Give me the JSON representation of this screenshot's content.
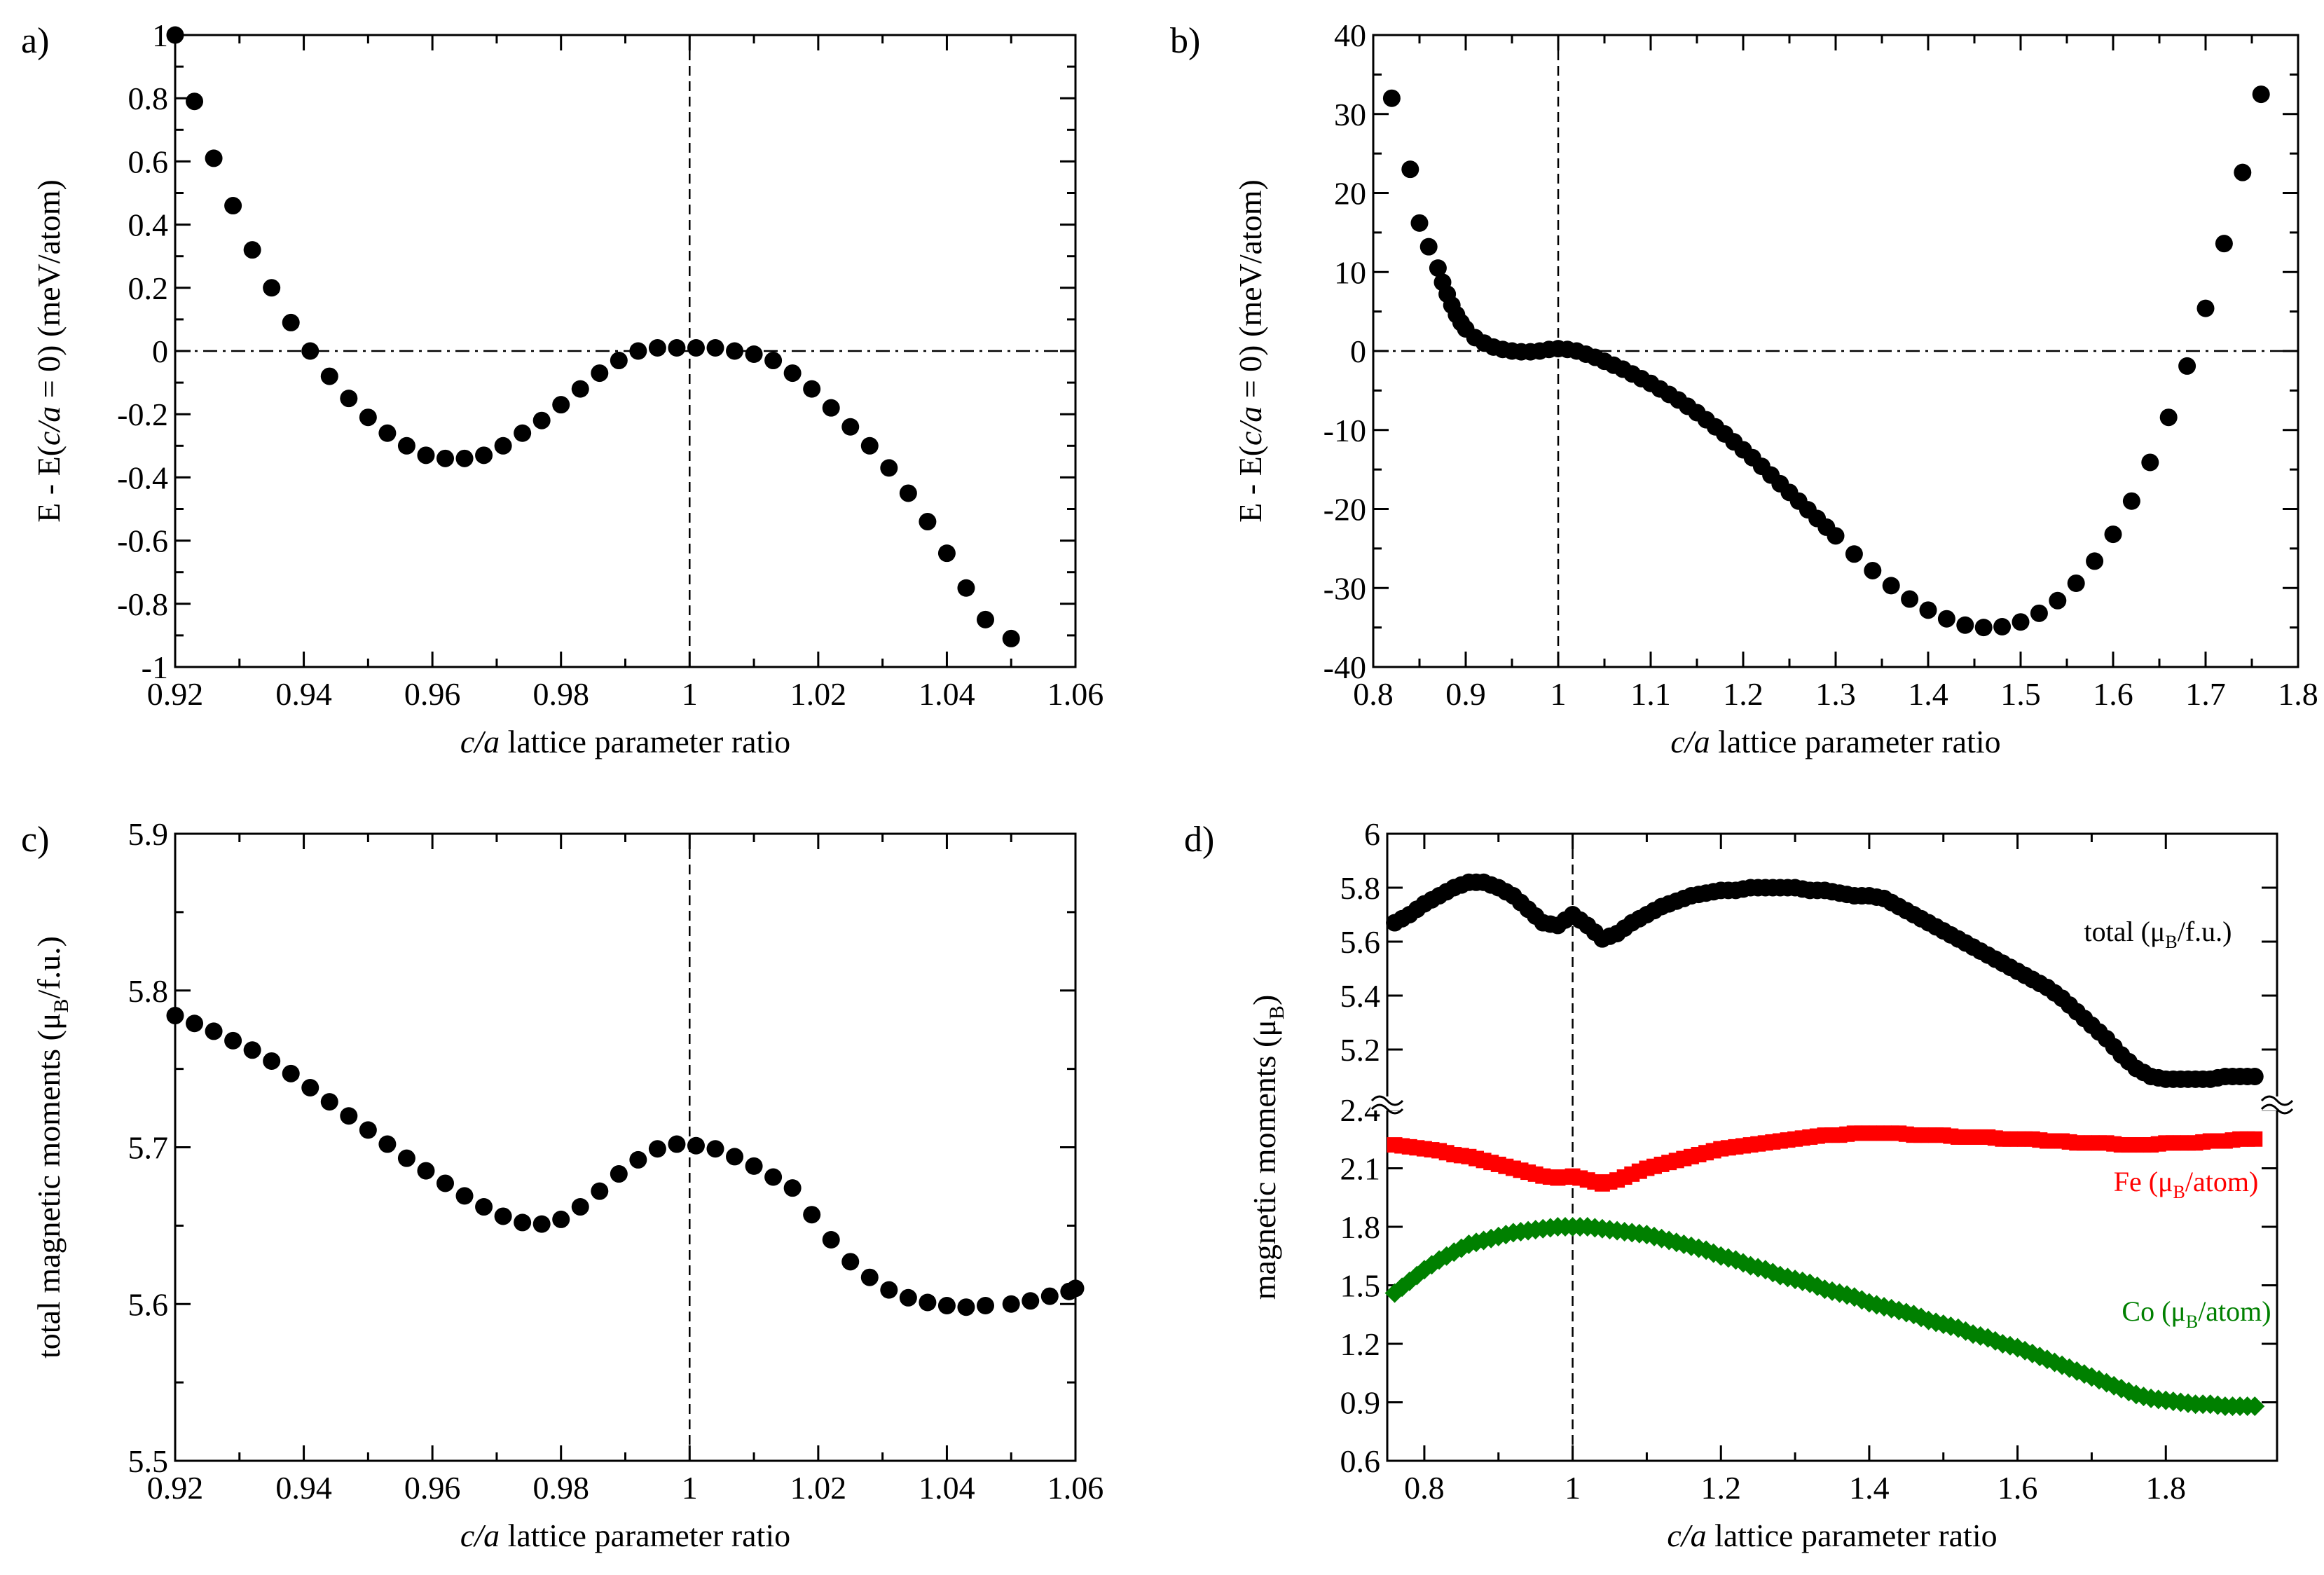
{
  "chart_data": [
    {
      "panel_label": "a)",
      "type": "scatter",
      "ylabel_pre": "E - E(",
      "ylabel_italic": "c/a",
      "ylabel_post": " = 0) (meV/atom)",
      "xlabel_italic": "c/a",
      "xlabel_rest": " lattice parameter ratio",
      "xlim": [
        0.92,
        1.06
      ],
      "ylim": [
        -1,
        1
      ],
      "xticks": [
        "0.92",
        "0.94",
        "0.96",
        "0.98",
        "1",
        "1.02",
        "1.04",
        "1.06"
      ],
      "yticks": [
        "-1",
        "-0.8",
        "-0.6",
        "-0.4",
        "-0.2",
        "0",
        "0.2",
        "0.4",
        "0.6",
        "0.8",
        "1"
      ],
      "reference_lines": {
        "vertical_x": 1,
        "horizontal_y": 0
      },
      "series": [
        {
          "color": "#000000",
          "marker": "circle",
          "x": [
            0.92,
            0.923,
            0.926,
            0.929,
            0.932,
            0.935,
            0.938,
            0.941,
            0.944,
            0.947,
            0.95,
            0.953,
            0.956,
            0.959,
            0.962,
            0.965,
            0.968,
            0.971,
            0.974,
            0.977,
            0.98,
            0.983,
            0.986,
            0.989,
            0.992,
            0.995,
            0.998,
            1.001,
            1.004,
            1.007,
            1.01,
            1.013,
            1.016,
            1.019,
            1.022,
            1.025,
            1.028,
            1.031,
            1.034,
            1.037,
            1.04,
            1.043,
            1.046,
            1.05
          ],
          "y": [
            1.0,
            0.79,
            0.61,
            0.46,
            0.32,
            0.2,
            0.09,
            0.0,
            -0.08,
            -0.15,
            -0.21,
            -0.26,
            -0.3,
            -0.33,
            -0.34,
            -0.34,
            -0.33,
            -0.3,
            -0.26,
            -0.22,
            -0.17,
            -0.12,
            -0.07,
            -0.03,
            0.0,
            0.01,
            0.01,
            0.01,
            0.01,
            0.0,
            -0.01,
            -0.03,
            -0.07,
            -0.12,
            -0.18,
            -0.24,
            -0.3,
            -0.37,
            -0.45,
            -0.54,
            -0.64,
            -0.75,
            -0.85,
            -0.91
          ]
        }
      ]
    },
    {
      "panel_label": "b)",
      "type": "scatter",
      "ylabel_pre": "E - E(",
      "ylabel_italic": "c/a",
      "ylabel_post": " = 0) (meV/atom)",
      "xlabel_italic": "c/a",
      "xlabel_rest": " lattice parameter ratio",
      "xlim": [
        0.8,
        1.8
      ],
      "ylim": [
        -40,
        40
      ],
      "xticks": [
        "0.8",
        "0.9",
        "1",
        "1.1",
        "1.2",
        "1.3",
        "1.4",
        "1.5",
        "1.6",
        "1.7",
        "1.8"
      ],
      "yticks": [
        "-40",
        "-30",
        "-20",
        "-10",
        "0",
        "10",
        "20",
        "30",
        "40"
      ],
      "reference_lines": {
        "vertical_x": 1,
        "horizontal_y": 0
      },
      "series": [
        {
          "color": "#000000",
          "marker": "circle",
          "x": [
            0.82,
            0.84,
            0.85,
            0.86,
            0.87,
            0.875,
            0.88,
            0.885,
            0.89,
            0.895,
            0.9,
            0.91,
            0.92,
            0.93,
            0.94,
            0.95,
            0.96,
            0.97,
            0.98,
            0.99,
            1.0,
            1.01,
            1.02,
            1.03,
            1.04,
            1.05,
            1.06,
            1.07,
            1.08,
            1.09,
            1.1,
            1.11,
            1.12,
            1.13,
            1.14,
            1.15,
            1.16,
            1.17,
            1.18,
            1.19,
            1.2,
            1.21,
            1.22,
            1.23,
            1.24,
            1.25,
            1.26,
            1.27,
            1.28,
            1.29,
            1.3,
            1.32,
            1.34,
            1.36,
            1.38,
            1.4,
            1.42,
            1.44,
            1.46,
            1.48,
            1.5,
            1.52,
            1.54,
            1.56,
            1.58,
            1.6,
            1.62,
            1.64,
            1.66,
            1.68,
            1.7,
            1.72,
            1.74,
            1.76
          ],
          "y": [
            32,
            23,
            16.2,
            13.2,
            10.5,
            8.7,
            7.2,
            5.8,
            4.6,
            3.6,
            2.8,
            1.7,
            1.0,
            0.5,
            0.2,
            0.0,
            -0.1,
            -0.1,
            0.0,
            0.2,
            0.3,
            0.2,
            0.0,
            -0.4,
            -0.8,
            -1.3,
            -1.8,
            -2.3,
            -2.9,
            -3.5,
            -4.1,
            -4.8,
            -5.5,
            -6.2,
            -7.0,
            -7.8,
            -8.7,
            -9.6,
            -10.5,
            -11.5,
            -12.5,
            -13.5,
            -14.6,
            -15.7,
            -16.8,
            -17.9,
            -19.0,
            -20.1,
            -21.2,
            -22.3,
            -23.4,
            -25.7,
            -27.8,
            -29.7,
            -31.4,
            -32.8,
            -33.9,
            -34.7,
            -35.0,
            -34.9,
            -34.3,
            -33.2,
            -31.6,
            -29.4,
            -26.6,
            -23.2,
            -19.0,
            -14.1,
            -8.4,
            -1.9,
            5.4,
            13.6,
            22.6,
            32.5
          ]
        }
      ]
    },
    {
      "panel_label": "c)",
      "type": "scatter",
      "ylabel_pre": "total magnetic moments (μ",
      "ylabel_sub": "B",
      "ylabel_post": "/f.u.)",
      "xlabel_italic": "c/a",
      "xlabel_rest": " lattice parameter ratio",
      "xlim": [
        0.92,
        1.06
      ],
      "ylim": [
        5.5,
        5.9
      ],
      "xticks": [
        "0.92",
        "0.94",
        "0.96",
        "0.98",
        "1",
        "1.02",
        "1.04",
        "1.06"
      ],
      "yticks": [
        "5.5",
        "5.6",
        "5.7",
        "5.8",
        "5.9"
      ],
      "reference_lines": {
        "vertical_x": 1
      },
      "series": [
        {
          "color": "#000000",
          "marker": "circle",
          "x": [
            0.92,
            0.923,
            0.926,
            0.929,
            0.932,
            0.935,
            0.938,
            0.941,
            0.944,
            0.947,
            0.95,
            0.953,
            0.956,
            0.959,
            0.962,
            0.965,
            0.968,
            0.971,
            0.974,
            0.977,
            0.98,
            0.983,
            0.986,
            0.989,
            0.992,
            0.995,
            0.998,
            1.001,
            1.004,
            1.007,
            1.01,
            1.013,
            1.016,
            1.019,
            1.022,
            1.025,
            1.028,
            1.031,
            1.034,
            1.037,
            1.04,
            1.043,
            1.046,
            1.05,
            1.053,
            1.056,
            1.059,
            1.06
          ],
          "y": [
            5.784,
            5.779,
            5.774,
            5.768,
            5.762,
            5.755,
            5.747,
            5.738,
            5.729,
            5.72,
            5.711,
            5.702,
            5.693,
            5.685,
            5.677,
            5.669,
            5.662,
            5.656,
            5.652,
            5.651,
            5.654,
            5.662,
            5.672,
            5.683,
            5.692,
            5.699,
            5.702,
            5.701,
            5.699,
            5.694,
            5.688,
            5.681,
            5.674,
            5.657,
            5.641,
            5.627,
            5.617,
            5.609,
            5.604,
            5.601,
            5.599,
            5.598,
            5.599,
            5.6,
            5.602,
            5.605,
            5.608,
            5.61
          ]
        }
      ]
    },
    {
      "panel_label": "d)",
      "type": "scatter",
      "ylabel_pre": "magnetic moments (μ",
      "ylabel_sub": "B",
      "ylabel_post": ")",
      "xlabel_italic": "c/a",
      "xlabel_rest": " lattice parameter ratio",
      "xlim": [
        0.75,
        1.95
      ],
      "ylim_lower": [
        0.6,
        2.4
      ],
      "ylim_upper": [
        5.0,
        6.0
      ],
      "axis_break": true,
      "xticks": [
        "0.8",
        "1",
        "1.2",
        "1.4",
        "1.6",
        "1.8"
      ],
      "yticks_lower": [
        "0.6",
        "0.9",
        "1.2",
        "1.5",
        "1.8",
        "2.1",
        "2.4"
      ],
      "yticks_upper": [
        "5.2",
        "5.4",
        "5.6",
        "5.8",
        "6"
      ],
      "reference_lines": {
        "vertical_x": 1
      },
      "series": [
        {
          "name": "total (μB/f.u.)",
          "color": "#000000",
          "marker": "circle",
          "axis": "upper",
          "x": [
            0.76,
            0.78,
            0.8,
            0.82,
            0.84,
            0.86,
            0.88,
            0.9,
            0.92,
            0.94,
            0.96,
            0.98,
            1.0,
            1.02,
            1.04,
            1.06,
            1.08,
            1.1,
            1.12,
            1.14,
            1.16,
            1.18,
            1.2,
            1.22,
            1.24,
            1.26,
            1.28,
            1.3,
            1.32,
            1.34,
            1.36,
            1.38,
            1.4,
            1.42,
            1.44,
            1.46,
            1.48,
            1.5,
            1.52,
            1.54,
            1.56,
            1.58,
            1.6,
            1.62,
            1.64,
            1.66,
            1.68,
            1.7,
            1.72,
            1.74,
            1.76,
            1.78,
            1.8,
            1.82,
            1.84,
            1.86,
            1.88,
            1.9,
            1.92
          ],
          "y": [
            5.67,
            5.7,
            5.74,
            5.77,
            5.8,
            5.82,
            5.82,
            5.8,
            5.77,
            5.72,
            5.67,
            5.66,
            5.7,
            5.66,
            5.61,
            5.63,
            5.67,
            5.7,
            5.73,
            5.75,
            5.77,
            5.78,
            5.79,
            5.79,
            5.8,
            5.8,
            5.8,
            5.8,
            5.79,
            5.79,
            5.78,
            5.77,
            5.77,
            5.76,
            5.73,
            5.7,
            5.67,
            5.64,
            5.61,
            5.58,
            5.55,
            5.52,
            5.49,
            5.46,
            5.43,
            5.39,
            5.34,
            5.29,
            5.24,
            5.18,
            5.13,
            5.1,
            5.09,
            5.09,
            5.09,
            5.09,
            5.1,
            5.1,
            5.1
          ]
        },
        {
          "name": "Fe (μB/atom)",
          "color": "#ff0000",
          "marker": "square",
          "axis": "lower",
          "x": [
            0.76,
            0.78,
            0.8,
            0.82,
            0.84,
            0.86,
            0.88,
            0.9,
            0.92,
            0.94,
            0.96,
            0.98,
            1.0,
            1.02,
            1.04,
            1.06,
            1.08,
            1.1,
            1.12,
            1.14,
            1.16,
            1.18,
            1.2,
            1.22,
            1.24,
            1.26,
            1.28,
            1.3,
            1.32,
            1.34,
            1.36,
            1.38,
            1.4,
            1.42,
            1.44,
            1.46,
            1.48,
            1.5,
            1.52,
            1.54,
            1.56,
            1.58,
            1.6,
            1.62,
            1.64,
            1.66,
            1.68,
            1.7,
            1.72,
            1.74,
            1.76,
            1.78,
            1.8,
            1.82,
            1.84,
            1.86,
            1.88,
            1.9,
            1.92
          ],
          "y": [
            2.22,
            2.21,
            2.2,
            2.19,
            2.17,
            2.16,
            2.14,
            2.12,
            2.1,
            2.08,
            2.06,
            2.05,
            2.06,
            2.04,
            2.02,
            2.04,
            2.07,
            2.1,
            2.12,
            2.14,
            2.16,
            2.18,
            2.2,
            2.21,
            2.22,
            2.23,
            2.24,
            2.25,
            2.26,
            2.27,
            2.27,
            2.28,
            2.28,
            2.28,
            2.28,
            2.27,
            2.27,
            2.27,
            2.26,
            2.26,
            2.26,
            2.25,
            2.25,
            2.25,
            2.24,
            2.24,
            2.23,
            2.23,
            2.23,
            2.22,
            2.22,
            2.22,
            2.23,
            2.23,
            2.23,
            2.24,
            2.24,
            2.25,
            2.25
          ]
        },
        {
          "name": "Co (μB/atom)",
          "color": "#008000",
          "marker": "diamond",
          "axis": "lower",
          "x": [
            0.76,
            0.78,
            0.8,
            0.82,
            0.84,
            0.86,
            0.88,
            0.9,
            0.92,
            0.94,
            0.96,
            0.98,
            1.0,
            1.02,
            1.04,
            1.06,
            1.08,
            1.1,
            1.12,
            1.14,
            1.16,
            1.18,
            1.2,
            1.22,
            1.24,
            1.26,
            1.28,
            1.3,
            1.32,
            1.34,
            1.36,
            1.38,
            1.4,
            1.42,
            1.44,
            1.46,
            1.48,
            1.5,
            1.52,
            1.54,
            1.56,
            1.58,
            1.6,
            1.62,
            1.64,
            1.66,
            1.68,
            1.7,
            1.72,
            1.74,
            1.76,
            1.78,
            1.8,
            1.82,
            1.84,
            1.86,
            1.88,
            1.9,
            1.92
          ],
          "y": [
            1.46,
            1.52,
            1.58,
            1.63,
            1.67,
            1.71,
            1.73,
            1.75,
            1.77,
            1.78,
            1.79,
            1.8,
            1.8,
            1.8,
            1.79,
            1.78,
            1.77,
            1.76,
            1.74,
            1.72,
            1.7,
            1.68,
            1.65,
            1.63,
            1.6,
            1.58,
            1.55,
            1.53,
            1.51,
            1.48,
            1.46,
            1.44,
            1.41,
            1.39,
            1.37,
            1.35,
            1.32,
            1.3,
            1.28,
            1.25,
            1.23,
            1.2,
            1.18,
            1.15,
            1.12,
            1.09,
            1.06,
            1.03,
            1.0,
            0.97,
            0.94,
            0.92,
            0.91,
            0.9,
            0.89,
            0.89,
            0.88,
            0.88,
            0.88
          ]
        }
      ],
      "annotations": [
        {
          "pre": "total (μ",
          "sub": "B",
          "post": "/f.u.)",
          "color": "#000000"
        },
        {
          "pre": "Fe (μ",
          "sub": "B",
          "post": "/atom)",
          "color": "#ff0000"
        },
        {
          "pre": "Co (μ",
          "sub": "B",
          "post": "/atom)",
          "color": "#008000"
        }
      ]
    }
  ]
}
